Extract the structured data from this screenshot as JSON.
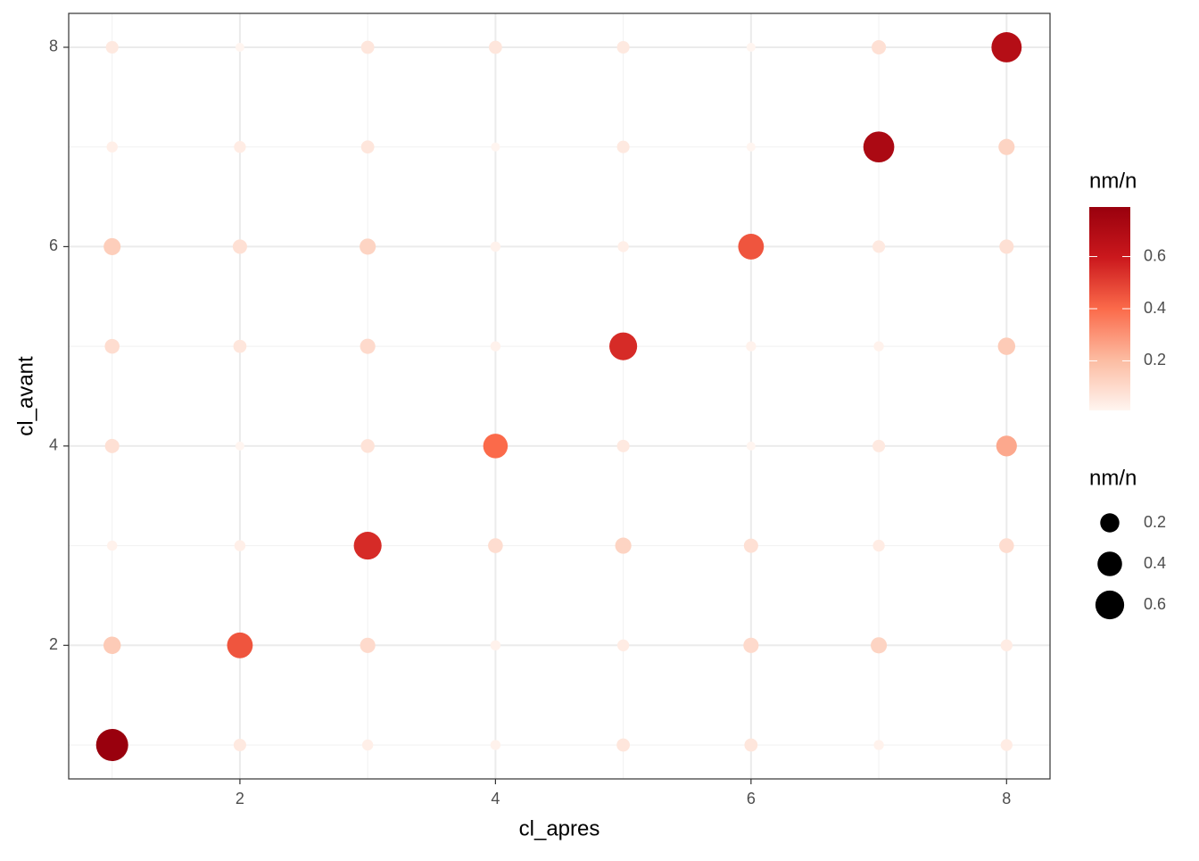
{
  "chart_data": {
    "type": "scatter",
    "x_label": "cl_apres",
    "y_label": "cl_avant",
    "x": [
      1,
      2,
      3,
      4,
      5,
      6,
      7,
      8,
      1,
      2,
      3,
      4,
      5,
      6,
      7,
      8,
      1,
      2,
      3,
      4,
      5,
      6,
      7,
      8,
      1,
      2,
      3,
      4,
      5,
      6,
      7,
      8,
      1,
      2,
      3,
      4,
      5,
      6,
      7,
      8,
      1,
      2,
      3,
      4,
      5,
      6,
      7,
      8,
      1,
      2,
      3,
      4,
      5,
      6,
      7,
      8,
      1,
      2,
      3,
      4,
      5,
      6,
      7,
      8
    ],
    "y": [
      1,
      1,
      1,
      1,
      1,
      1,
      1,
      1,
      2,
      2,
      2,
      2,
      2,
      2,
      2,
      2,
      3,
      3,
      3,
      3,
      3,
      3,
      3,
      3,
      4,
      4,
      4,
      4,
      4,
      4,
      4,
      4,
      5,
      5,
      5,
      5,
      5,
      5,
      5,
      5,
      6,
      6,
      6,
      6,
      6,
      6,
      6,
      6,
      7,
      7,
      7,
      7,
      7,
      7,
      7,
      7,
      8,
      8,
      8,
      8,
      8,
      8,
      8,
      8
    ],
    "values": [
      0.79,
      0.05,
      0.03,
      0.02,
      0.06,
      0.06,
      0.02,
      0.04,
      0.15,
      0.45,
      0.1,
      0.02,
      0.04,
      0.1,
      0.12,
      0.04,
      0.02,
      0.03,
      0.55,
      0.09,
      0.12,
      0.08,
      0.04,
      0.09,
      0.08,
      0.01,
      0.07,
      0.4,
      0.05,
      0.01,
      0.05,
      0.25,
      0.09,
      0.06,
      0.1,
      0.02,
      0.55,
      0.02,
      0.02,
      0.15,
      0.14,
      0.08,
      0.12,
      0.02,
      0.03,
      0.45,
      0.05,
      0.08,
      0.03,
      0.04,
      0.06,
      0.01,
      0.05,
      0.01,
      0.72,
      0.12,
      0.05,
      0.01,
      0.06,
      0.06,
      0.05,
      0.01,
      0.08,
      0.68
    ],
    "xlim": [
      0.66,
      8.34
    ],
    "ylim": [
      0.66,
      8.34
    ],
    "xticks": [
      2,
      4,
      6,
      8
    ],
    "yticks": [
      2,
      4,
      6,
      8
    ],
    "grid": true,
    "colors": [
      "#fff5f0",
      "#fcbba1",
      "#fb6a4a",
      "#cb181d",
      "#99000d"
    ],
    "color_legend": {
      "title": "nm/n",
      "ticks": [
        0.2,
        0.4,
        0.6
      ]
    },
    "size_legend": {
      "title": "nm/n",
      "ticks": [
        0.2,
        0.4,
        0.6
      ]
    }
  }
}
